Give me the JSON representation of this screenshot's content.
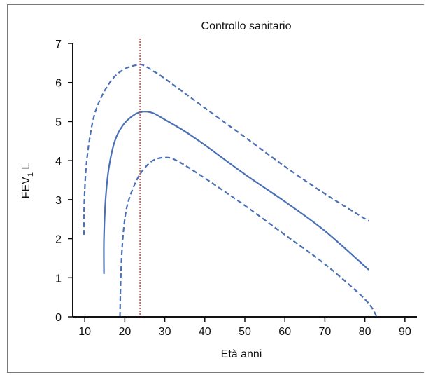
{
  "chart_data": {
    "type": "line",
    "title": "Controllo sanitario",
    "xlabel": "Età anni",
    "ylabel": {
      "main": "FEV",
      "sub": "1",
      "unit": " L"
    },
    "xlim": [
      7,
      93
    ],
    "ylim": [
      0,
      7
    ],
    "x_ticks": [
      10,
      20,
      30,
      40,
      50,
      60,
      70,
      80,
      90
    ],
    "y_ticks": [
      0,
      1,
      2,
      3,
      4,
      5,
      6,
      7
    ],
    "grid": false,
    "colors": {
      "line": "#4a70b5",
      "reference": "#e0413a",
      "axis": "#111111"
    },
    "series": [
      {
        "style": "dashed",
        "points": [
          [
            9.8,
            2.1
          ],
          [
            9.9,
            3.0
          ],
          [
            10.5,
            4.0
          ],
          [
            12,
            5.0
          ],
          [
            14,
            5.6
          ],
          [
            17,
            6.1
          ],
          [
            20,
            6.35
          ],
          [
            23,
            6.45
          ],
          [
            24.5,
            6.45
          ],
          [
            27,
            6.3
          ],
          [
            30,
            6.1
          ],
          [
            40,
            5.35
          ],
          [
            50,
            4.6
          ],
          [
            60,
            3.85
          ],
          [
            70,
            3.15
          ],
          [
            81,
            2.45
          ]
        ]
      },
      {
        "style": "solid",
        "points": [
          [
            14.8,
            1.1
          ],
          [
            14.8,
            2.0
          ],
          [
            15.2,
            3.0
          ],
          [
            16,
            3.8
          ],
          [
            17.5,
            4.5
          ],
          [
            19.5,
            4.9
          ],
          [
            22,
            5.15
          ],
          [
            24.3,
            5.25
          ],
          [
            27,
            5.22
          ],
          [
            30,
            5.05
          ],
          [
            35,
            4.75
          ],
          [
            40,
            4.4
          ],
          [
            50,
            3.65
          ],
          [
            60,
            2.95
          ],
          [
            70,
            2.2
          ],
          [
            81,
            1.2
          ]
        ]
      },
      {
        "style": "dashed",
        "points": [
          [
            18.8,
            0.0
          ],
          [
            19,
            1.0
          ],
          [
            19.5,
            2.0
          ],
          [
            20.5,
            2.8
          ],
          [
            22.5,
            3.4
          ],
          [
            24.5,
            3.75
          ],
          [
            27,
            4.0
          ],
          [
            30,
            4.08
          ],
          [
            33,
            4.0
          ],
          [
            40,
            3.55
          ],
          [
            50,
            2.85
          ],
          [
            60,
            2.1
          ],
          [
            70,
            1.35
          ],
          [
            80,
            0.45
          ],
          [
            83,
            0.0
          ]
        ]
      }
    ],
    "reference_line": {
      "x": 23.8
    }
  }
}
